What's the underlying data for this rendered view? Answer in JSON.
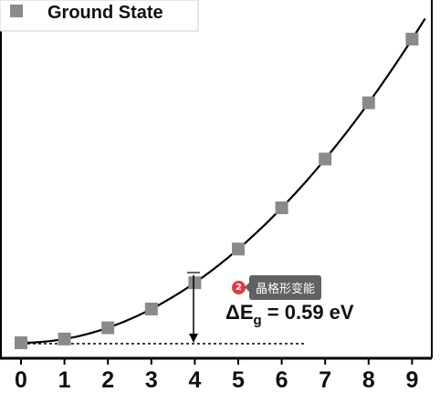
{
  "chart_data": {
    "type": "scatter",
    "x": [
      0,
      1,
      2,
      3,
      4,
      5,
      6,
      7,
      8,
      9
    ],
    "series": [
      {
        "name": "Ground State",
        "values": [
          0.0,
          0.0125,
          0.05,
          0.1125,
          0.2,
          0.3125,
          0.45,
          0.6125,
          0.8,
          1.0125
        ],
        "marker": "square",
        "color": "#8a8a8a"
      }
    ],
    "fit_curve": {
      "shape": "parabola",
      "color": "#000000"
    },
    "xlim": [
      -0.3,
      9.4
    ],
    "ylim": [
      -0.02,
      1.09
    ],
    "x_ticks": [
      "0",
      "1",
      "2",
      "3",
      "4",
      "5",
      "6",
      "7",
      "8",
      "9"
    ],
    "legend": {
      "placement": "top-left"
    },
    "annotation": {
      "main": "ΔE",
      "sub": "g",
      "rest": " = 0.59 eV",
      "arrow_x": 4
    }
  },
  "tooltip": {
    "badge": "2",
    "label": "晶格形变能"
  }
}
